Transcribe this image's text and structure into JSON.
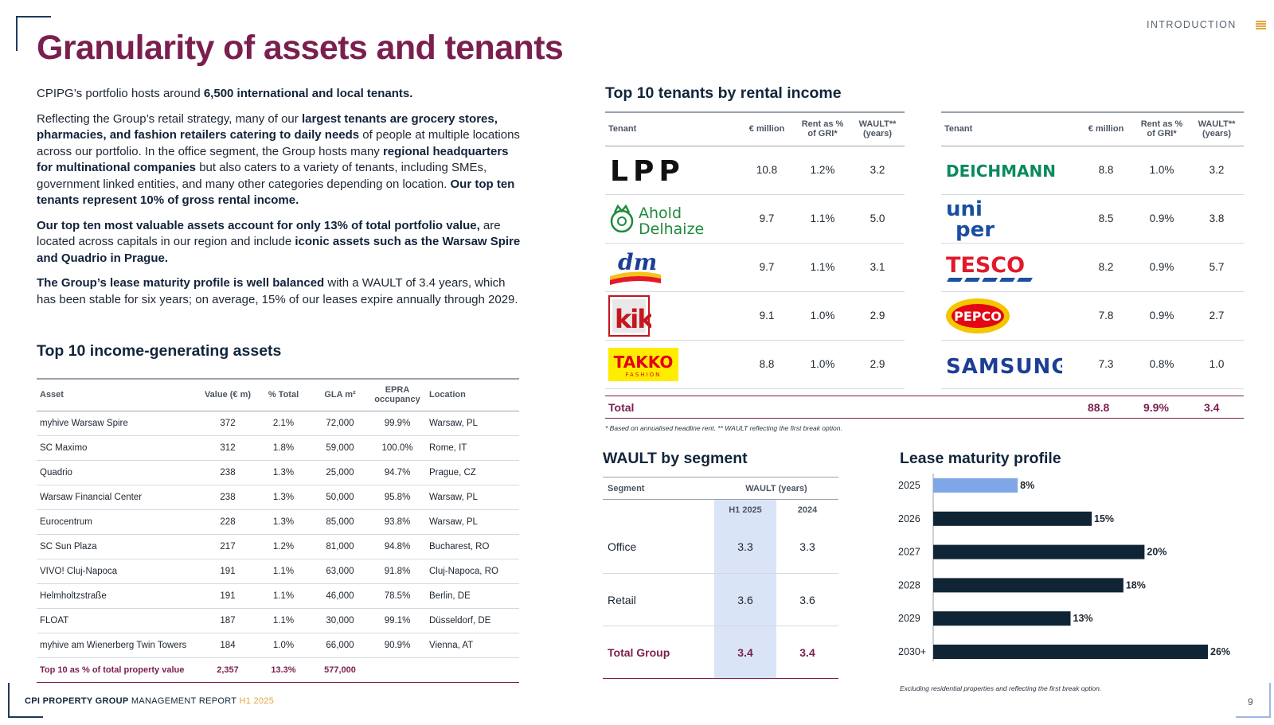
{
  "header": {
    "title": "Granularity of assets and tenants",
    "section_link": "INTRODUCTION"
  },
  "intro": {
    "p1": [
      {
        "t": "CPIPG’s portfolio hosts around ",
        "b": false
      },
      {
        "t": "6,500 international and local tenants.",
        "b": true
      }
    ],
    "p2": [
      {
        "t": "Reflecting the Group’s retail strategy, many of our ",
        "b": false
      },
      {
        "t": "largest tenants are grocery stores, pharmacies, and fashion retailers catering to daily needs",
        "b": true
      },
      {
        "t": " of people at multiple locations across our portfolio. In the office segment, the Group hosts many ",
        "b": false
      },
      {
        "t": "regional headquarters for multinational companies",
        "b": true
      },
      {
        "t": " but also caters to a variety of tenants, including SMEs, government linked entities, and many other categories depending on location. ",
        "b": false
      },
      {
        "t": "Our top ten tenants represent 10% of gross rental income.",
        "b": true
      }
    ],
    "p3": [
      {
        "t": "Our top ten most valuable assets account for only 13% of total portfolio value,",
        "b": true
      },
      {
        "t": " are located across capitals in our region and include ",
        "b": false
      },
      {
        "t": "iconic assets such as the Warsaw Spire and Quadrio in Prague.",
        "b": true
      }
    ],
    "p4": [
      {
        "t": "The Group’s lease maturity profile is well balanced",
        "b": true
      },
      {
        "t": " with a WAULT of 3.4 years, which has been stable for six years; on average, 15% of our leases expire annually through 2029.",
        "b": false
      }
    ]
  },
  "assets": {
    "title": "Top 10 income-generating assets",
    "columns": [
      "Asset",
      "Value (€ m)",
      "% Total",
      "GLA m²",
      "EPRA occupancy",
      "Location"
    ],
    "rows": [
      [
        "myhive Warsaw Spire",
        "372",
        "2.1%",
        "72,000",
        "99.9%",
        "Warsaw, PL"
      ],
      [
        "SC Maximo",
        "312",
        "1.8%",
        "59,000",
        "100.0%",
        "Rome, IT"
      ],
      [
        "Quadrio",
        "238",
        "1.3%",
        "25,000",
        "94.7%",
        "Prague, CZ"
      ],
      [
        "Warsaw Financial Center",
        "238",
        "1.3%",
        "50,000",
        "95.8%",
        "Warsaw, PL"
      ],
      [
        "Eurocentrum",
        "228",
        "1.3%",
        "85,000",
        "93.8%",
        "Warsaw, PL"
      ],
      [
        "SC Sun Plaza",
        "217",
        "1.2%",
        "81,000",
        "94.8%",
        "Bucharest, RO"
      ],
      [
        "VIVO! Cluj-Napoca",
        "191",
        "1.1%",
        "63,000",
        "91.8%",
        "Cluj-Napoca, RO"
      ],
      [
        "Helmholtzstraße",
        "191",
        "1.1%",
        "46,000",
        "78.5%",
        "Berlin, DE"
      ],
      [
        "FLOAT",
        "187",
        "1.1%",
        "30,000",
        "99.1%",
        "Düsseldorf, DE"
      ],
      [
        "myhive am Wienerberg Twin Towers",
        "184",
        "1.0%",
        "66,000",
        "90.9%",
        "Vienna, AT"
      ]
    ],
    "total": [
      "Top 10 as % of total property value",
      "2,357",
      "13.3%",
      "577,000",
      "",
      ""
    ]
  },
  "tenants": {
    "title": "Top 10 tenants by rental income",
    "columns": [
      "Tenant",
      "€ million",
      "Rent as % of GRI*",
      "WAULT** (years)"
    ],
    "left": [
      {
        "name": "LPP",
        "logo": "lpp-logo",
        "million": "10.8",
        "rent": "1.2%",
        "wault": "3.2"
      },
      {
        "name": "Ahold Delhaize",
        "logo": "ahold-delhaize-logo",
        "million": "9.7",
        "rent": "1.1%",
        "wault": "5.0"
      },
      {
        "name": "dm",
        "logo": "dm-logo",
        "million": "9.7",
        "rent": "1.1%",
        "wault": "3.1"
      },
      {
        "name": "kik",
        "logo": "kik-logo",
        "million": "9.1",
        "rent": "1.0%",
        "wault": "2.9"
      },
      {
        "name": "TAKKO",
        "sub": "FASHION",
        "logo": "takko-logo",
        "million": "8.8",
        "rent": "1.0%",
        "wault": "2.9"
      }
    ],
    "right": [
      {
        "name": "DEICHMANN",
        "logo": "deichmann-logo",
        "million": "8.8",
        "rent": "1.0%",
        "wault": "3.2"
      },
      {
        "name": "uni per",
        "logo": "uniper-logo",
        "million": "8.5",
        "rent": "0.9%",
        "wault": "3.8"
      },
      {
        "name": "TESCO",
        "logo": "tesco-logo",
        "million": "8.2",
        "rent": "0.9%",
        "wault": "5.7"
      },
      {
        "name": "PEPCO",
        "logo": "pepco-logo",
        "million": "7.8",
        "rent": "0.9%",
        "wault": "2.7"
      },
      {
        "name": "SAMSUNG",
        "logo": "samsung-logo",
        "million": "7.3",
        "rent": "0.8%",
        "wault": "1.0"
      }
    ],
    "total": {
      "label": "Total",
      "million": "88.8",
      "rent": "9.9%",
      "wault": "3.4"
    },
    "footnote": "* Based on annualised headline rent. ** WAULT reflecting the first break option."
  },
  "wault": {
    "title": "WAULT by segment",
    "segment_header": "Segment",
    "wault_header": "WAULT (years)",
    "periods": [
      "H1 2025",
      "2024"
    ],
    "rows": [
      {
        "segment": "Office",
        "h1": "3.3",
        "prev": "3.3"
      },
      {
        "segment": "Retail",
        "h1": "3.6",
        "prev": "3.6"
      }
    ],
    "total": {
      "segment": "Total Group",
      "h1": "3.4",
      "prev": "3.4"
    }
  },
  "chart_data": {
    "type": "bar",
    "orientation": "horizontal",
    "title": "Lease maturity profile",
    "categories": [
      "2025",
      "2026",
      "2027",
      "2028",
      "2029",
      "2030+"
    ],
    "values": [
      8,
      15,
      20,
      18,
      13,
      26
    ],
    "value_labels": [
      "8%",
      "15%",
      "20%",
      "18%",
      "13%",
      "26%"
    ],
    "colors": [
      "#7fa7e8",
      "#0f2535",
      "#0f2535",
      "#0f2535",
      "#0f2535",
      "#0f2535"
    ],
    "xlabel": "",
    "ylabel": "",
    "grid": false,
    "note": "Excluding residential properties and reflecting the first break option."
  },
  "footer": {
    "company": "CPI PROPERTY GROUP",
    "report": "MANAGEMENT REPORT",
    "period": "H1 2025",
    "page": "9"
  },
  "colors": {
    "accent": "#7b1f4f",
    "navy": "#12253b",
    "highlight": "#d9e4f6",
    "gold": "#e3a53a"
  }
}
